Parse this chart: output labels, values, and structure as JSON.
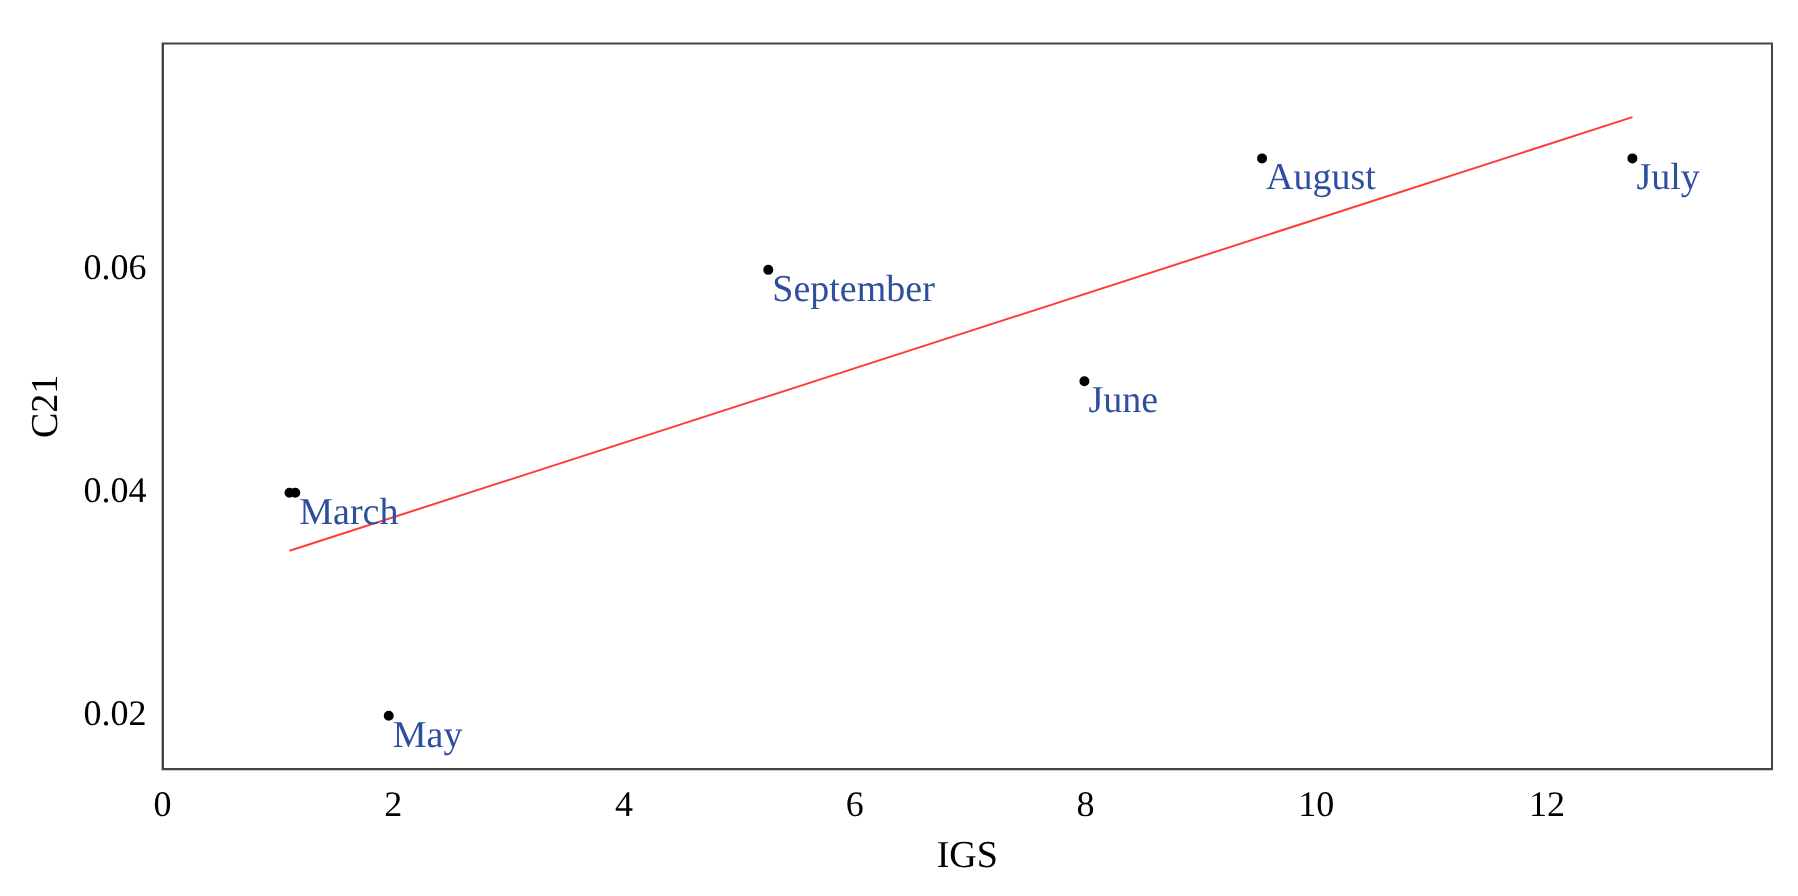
{
  "chart_data": {
    "type": "scatter",
    "xlabel": "IGS",
    "ylabel": "C21",
    "xlim": [
      0,
      13.95
    ],
    "ylim": [
      0.0152,
      0.0803
    ],
    "xticks": [
      0,
      2,
      4,
      6,
      8,
      10,
      12
    ],
    "yticks": [
      0.02,
      0.04,
      0.06
    ],
    "series": [
      {
        "marker": "circle",
        "color": "#000000",
        "x": [
          1.1,
          1.15,
          1.96,
          5.25,
          7.99,
          9.53,
          12.74
        ],
        "values": [
          0.04,
          0.04,
          0.02,
          0.06,
          0.05,
          0.07,
          0.07
        ]
      },
      {
        "type": "line",
        "marker": "none",
        "color": "#ff3b3b",
        "x": [
          1.1,
          12.74
        ],
        "values": [
          0.0348,
          0.0737
        ]
      }
    ],
    "annotations": [
      {
        "text": "March",
        "x": 1.15,
        "y": 0.04
      },
      {
        "text": "May",
        "x": 1.96,
        "y": 0.02
      },
      {
        "text": "September",
        "x": 5.25,
        "y": 0.06
      },
      {
        "text": "June",
        "x": 7.99,
        "y": 0.05
      },
      {
        "text": "August",
        "x": 9.53,
        "y": 0.07
      },
      {
        "text": "July",
        "x": 12.74,
        "y": 0.07
      }
    ]
  }
}
